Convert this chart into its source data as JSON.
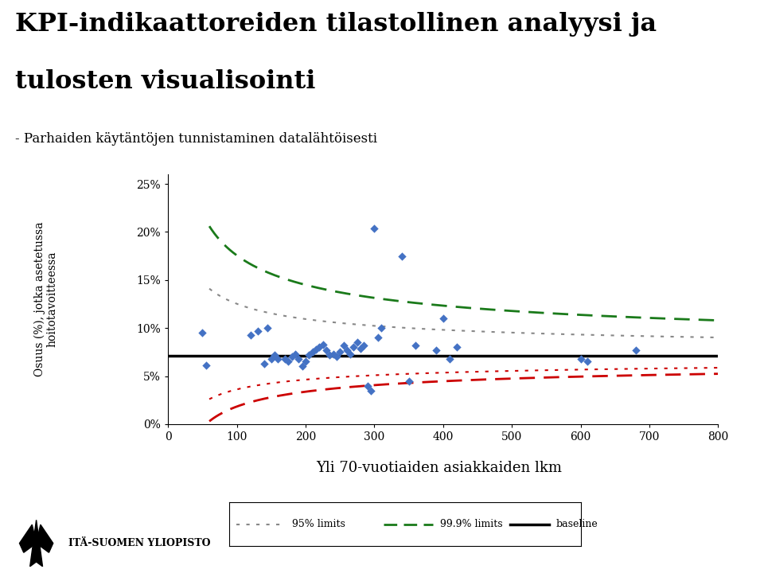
{
  "title_line1": "KPI-indikaattoreiden tilastollinen analyysi ja",
  "title_line2": "tulosten visualisointi",
  "subtitle": "- Parhaiden käytäntöjen tunnistaminen datalähtöisesti",
  "xlabel": "Yli 70-vuotiaiden asiakkaiden lkm",
  "ylabel": "Osuus (%), jotka asetetussa\nhoitotavoitteessa",
  "baseline_y": 0.071,
  "xlim": [
    0,
    800
  ],
  "ylim": [
    0,
    0.26
  ],
  "yticks": [
    0.0,
    0.05,
    0.1,
    0.15,
    0.2,
    0.25
  ],
  "ytick_labels": [
    "0%",
    "5%",
    "10%",
    "15%",
    "20%",
    "25%"
  ],
  "xticks": [
    0,
    100,
    200,
    300,
    400,
    500,
    600,
    700,
    800
  ],
  "scatter_x": [
    50,
    55,
    120,
    130,
    140,
    145,
    150,
    155,
    160,
    170,
    175,
    180,
    185,
    190,
    195,
    200,
    205,
    210,
    215,
    220,
    225,
    230,
    235,
    240,
    245,
    250,
    255,
    260,
    265,
    270,
    275,
    280,
    285,
    290,
    295,
    300,
    305,
    310,
    340,
    350,
    360,
    390,
    400,
    410,
    420,
    600,
    610,
    680
  ],
  "scatter_y": [
    0.095,
    0.061,
    0.093,
    0.097,
    0.063,
    0.1,
    0.068,
    0.072,
    0.068,
    0.068,
    0.065,
    0.07,
    0.073,
    0.068,
    0.06,
    0.065,
    0.072,
    0.075,
    0.078,
    0.08,
    0.083,
    0.077,
    0.072,
    0.073,
    0.07,
    0.075,
    0.082,
    0.077,
    0.073,
    0.08,
    0.085,
    0.079,
    0.082,
    0.04,
    0.035,
    0.204,
    0.09,
    0.1,
    0.175,
    0.045,
    0.082,
    0.077,
    0.11,
    0.068,
    0.08,
    0.068,
    0.065,
    0.077
  ],
  "scatter_color": "#4472C4",
  "baseline_color": "#000000",
  "green_dashed_color": "#1a7a1a",
  "red_dashed_color": "#cc0000",
  "gray_dashed_color": "#888888",
  "top_bar_color": "#e8a0a8",
  "bottom_bar_color": "#a0c8d0"
}
